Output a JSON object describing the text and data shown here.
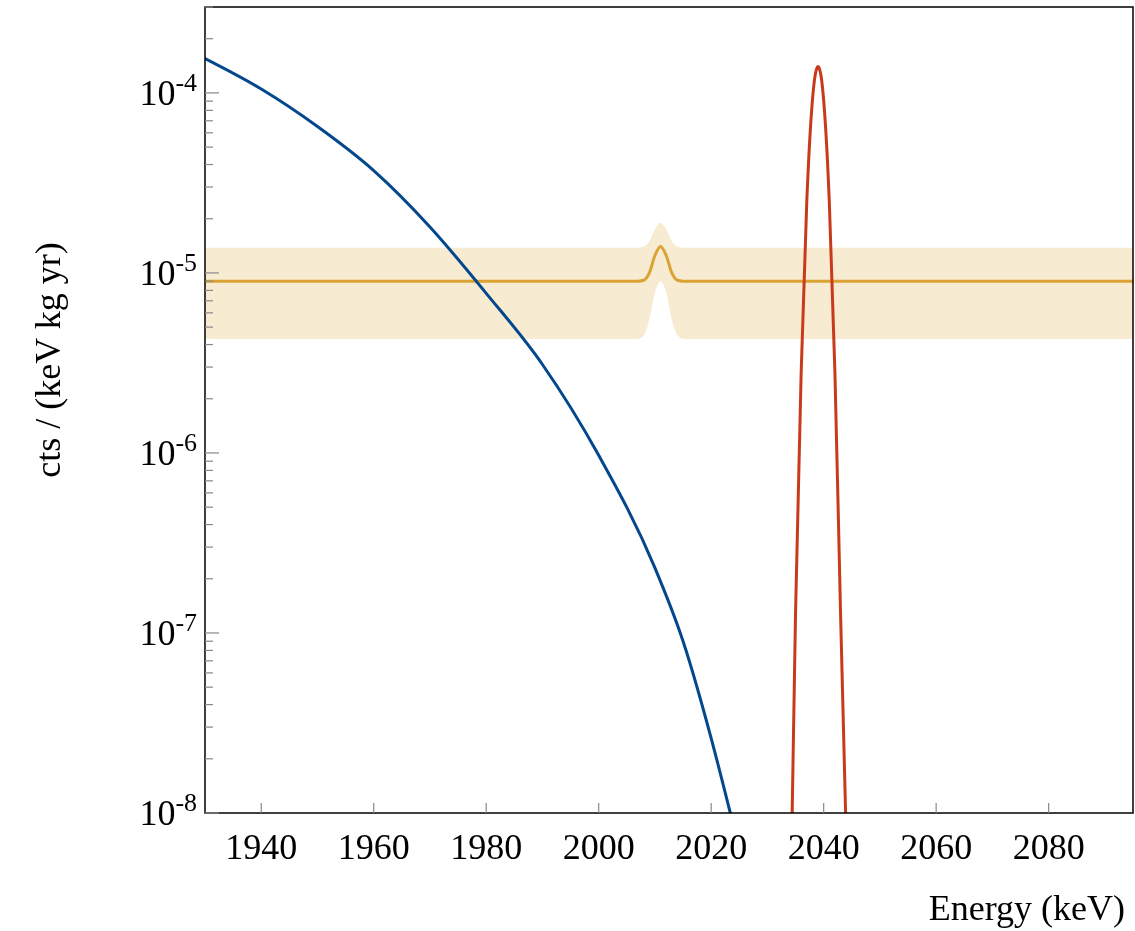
{
  "chart_data": {
    "type": "line",
    "xlabel": "Energy (keV)",
    "ylabel": "cts / (keV kg yr)",
    "log": "y",
    "grid": false,
    "marker": "none",
    "line_style": "solid",
    "xlim": [
      1930,
      2095
    ],
    "xticks": [
      1940,
      1960,
      1980,
      2000,
      2020,
      2040,
      2060,
      2080
    ],
    "ylim": [
      1e-08,
      0.0003
    ],
    "yticks": [
      {
        "value": 1e-08,
        "label": "10$^{-8}$"
      },
      {
        "value": 2e-08,
        "label": null
      },
      {
        "value": 3e-08,
        "label": null
      },
      {
        "value": 4e-08,
        "label": null
      },
      {
        "value": 5e-08,
        "label": null
      },
      {
        "value": 6e-08,
        "label": null
      },
      {
        "value": 7e-08,
        "label": null
      },
      {
        "value": 8e-08,
        "label": null
      },
      {
        "value": 9e-08,
        "label": null
      },
      {
        "value": 1e-07,
        "label": "10$^{-7}$"
      },
      {
        "value": 2e-07,
        "label": null
      },
      {
        "value": 3e-07,
        "label": null
      },
      {
        "value": 4e-07,
        "label": null
      },
      {
        "value": 5e-07,
        "label": null
      },
      {
        "value": 6e-07,
        "label": null
      },
      {
        "value": 7e-07,
        "label": null
      },
      {
        "value": 8e-07,
        "label": null
      },
      {
        "value": 9e-07,
        "label": null
      },
      {
        "value": 1e-06,
        "label": "10$^{-6}$"
      },
      {
        "value": 2e-06,
        "label": null
      },
      {
        "value": 3e-06,
        "label": null
      },
      {
        "value": 4e-06,
        "label": null
      },
      {
        "value": 5e-06,
        "label": null
      },
      {
        "value": 6e-06,
        "label": null
      },
      {
        "value": 7e-06,
        "label": null
      },
      {
        "value": 8e-06,
        "label": null
      },
      {
        "value": 9e-06,
        "label": null
      },
      {
        "value": 1e-05,
        "label": "10$^{-5}$"
      },
      {
        "value": 2e-05,
        "label": null
      },
      {
        "value": 3e-05,
        "label": null
      },
      {
        "value": 4e-05,
        "label": null
      },
      {
        "value": 5e-05,
        "label": null
      },
      {
        "value": 6e-05,
        "label": null
      },
      {
        "value": 7e-05,
        "label": null
      },
      {
        "value": 8e-05,
        "label": null
      },
      {
        "value": 9e-05,
        "label": null
      },
      {
        "value": 0.0001,
        "label": "10$^{-4}$"
      },
      {
        "value": 0.0002,
        "label": null
      },
      {
        "value": 0.0003,
        "label": null
      }
    ],
    "series": [
      {
        "color": "#dba333",
        "x": [
          1930,
          2007,
          2008,
          2009,
          2010,
          2011,
          2012,
          2013,
          2014,
          2015,
          2095
        ],
        "values": [
          9e-06,
          9e-06,
          9.1e-06,
          1e-05,
          1.25e-05,
          1.4e-05,
          1.25e-05,
          1e-05,
          9.1e-06,
          9e-06,
          9e-06
        ],
        "lower": [
          4.3e-06,
          4.3e-06,
          4.5e-06,
          5.5e-06,
          7.8e-06,
          9e-06,
          7.8e-06,
          5.5e-06,
          4.5e-06,
          4.3e-06,
          4.3e-06
        ],
        "upper": [
          1.38e-05,
          1.38e-05,
          1.4e-05,
          1.5e-05,
          1.75e-05,
          1.9e-05,
          1.75e-05,
          1.5e-05,
          1.4e-05,
          1.38e-05,
          1.38e-05
        ]
      },
      {
        "color": "#03478c",
        "x": [
          1930,
          1940,
          1950,
          1960,
          1970,
          1980,
          1990,
          2000,
          2010,
          2015,
          2020,
          2023.4
        ],
        "values": [
          0.000155,
          0.000105,
          6.5e-05,
          3.7e-05,
          1.8e-05,
          7.7e-06,
          3.1e-06,
          9.7e-07,
          2.3e-07,
          9e-08,
          2.6e-08,
          1e-08
        ]
      },
      {
        "color": "#c93a1a",
        "x": [
          2034.4,
          2035,
          2036,
          2037,
          2038,
          2038.5,
          2039,
          2039.5,
          2040,
          2041,
          2042,
          2043,
          2043.9
        ],
        "values": [
          1e-08,
          1.3e-07,
          2.8e-06,
          2.5e-05,
          9.1e-05,
          0.000126,
          0.00014,
          0.000126,
          9.1e-05,
          2.5e-05,
          2.8e-06,
          1.3e-07,
          1e-08
        ]
      }
    ]
  }
}
